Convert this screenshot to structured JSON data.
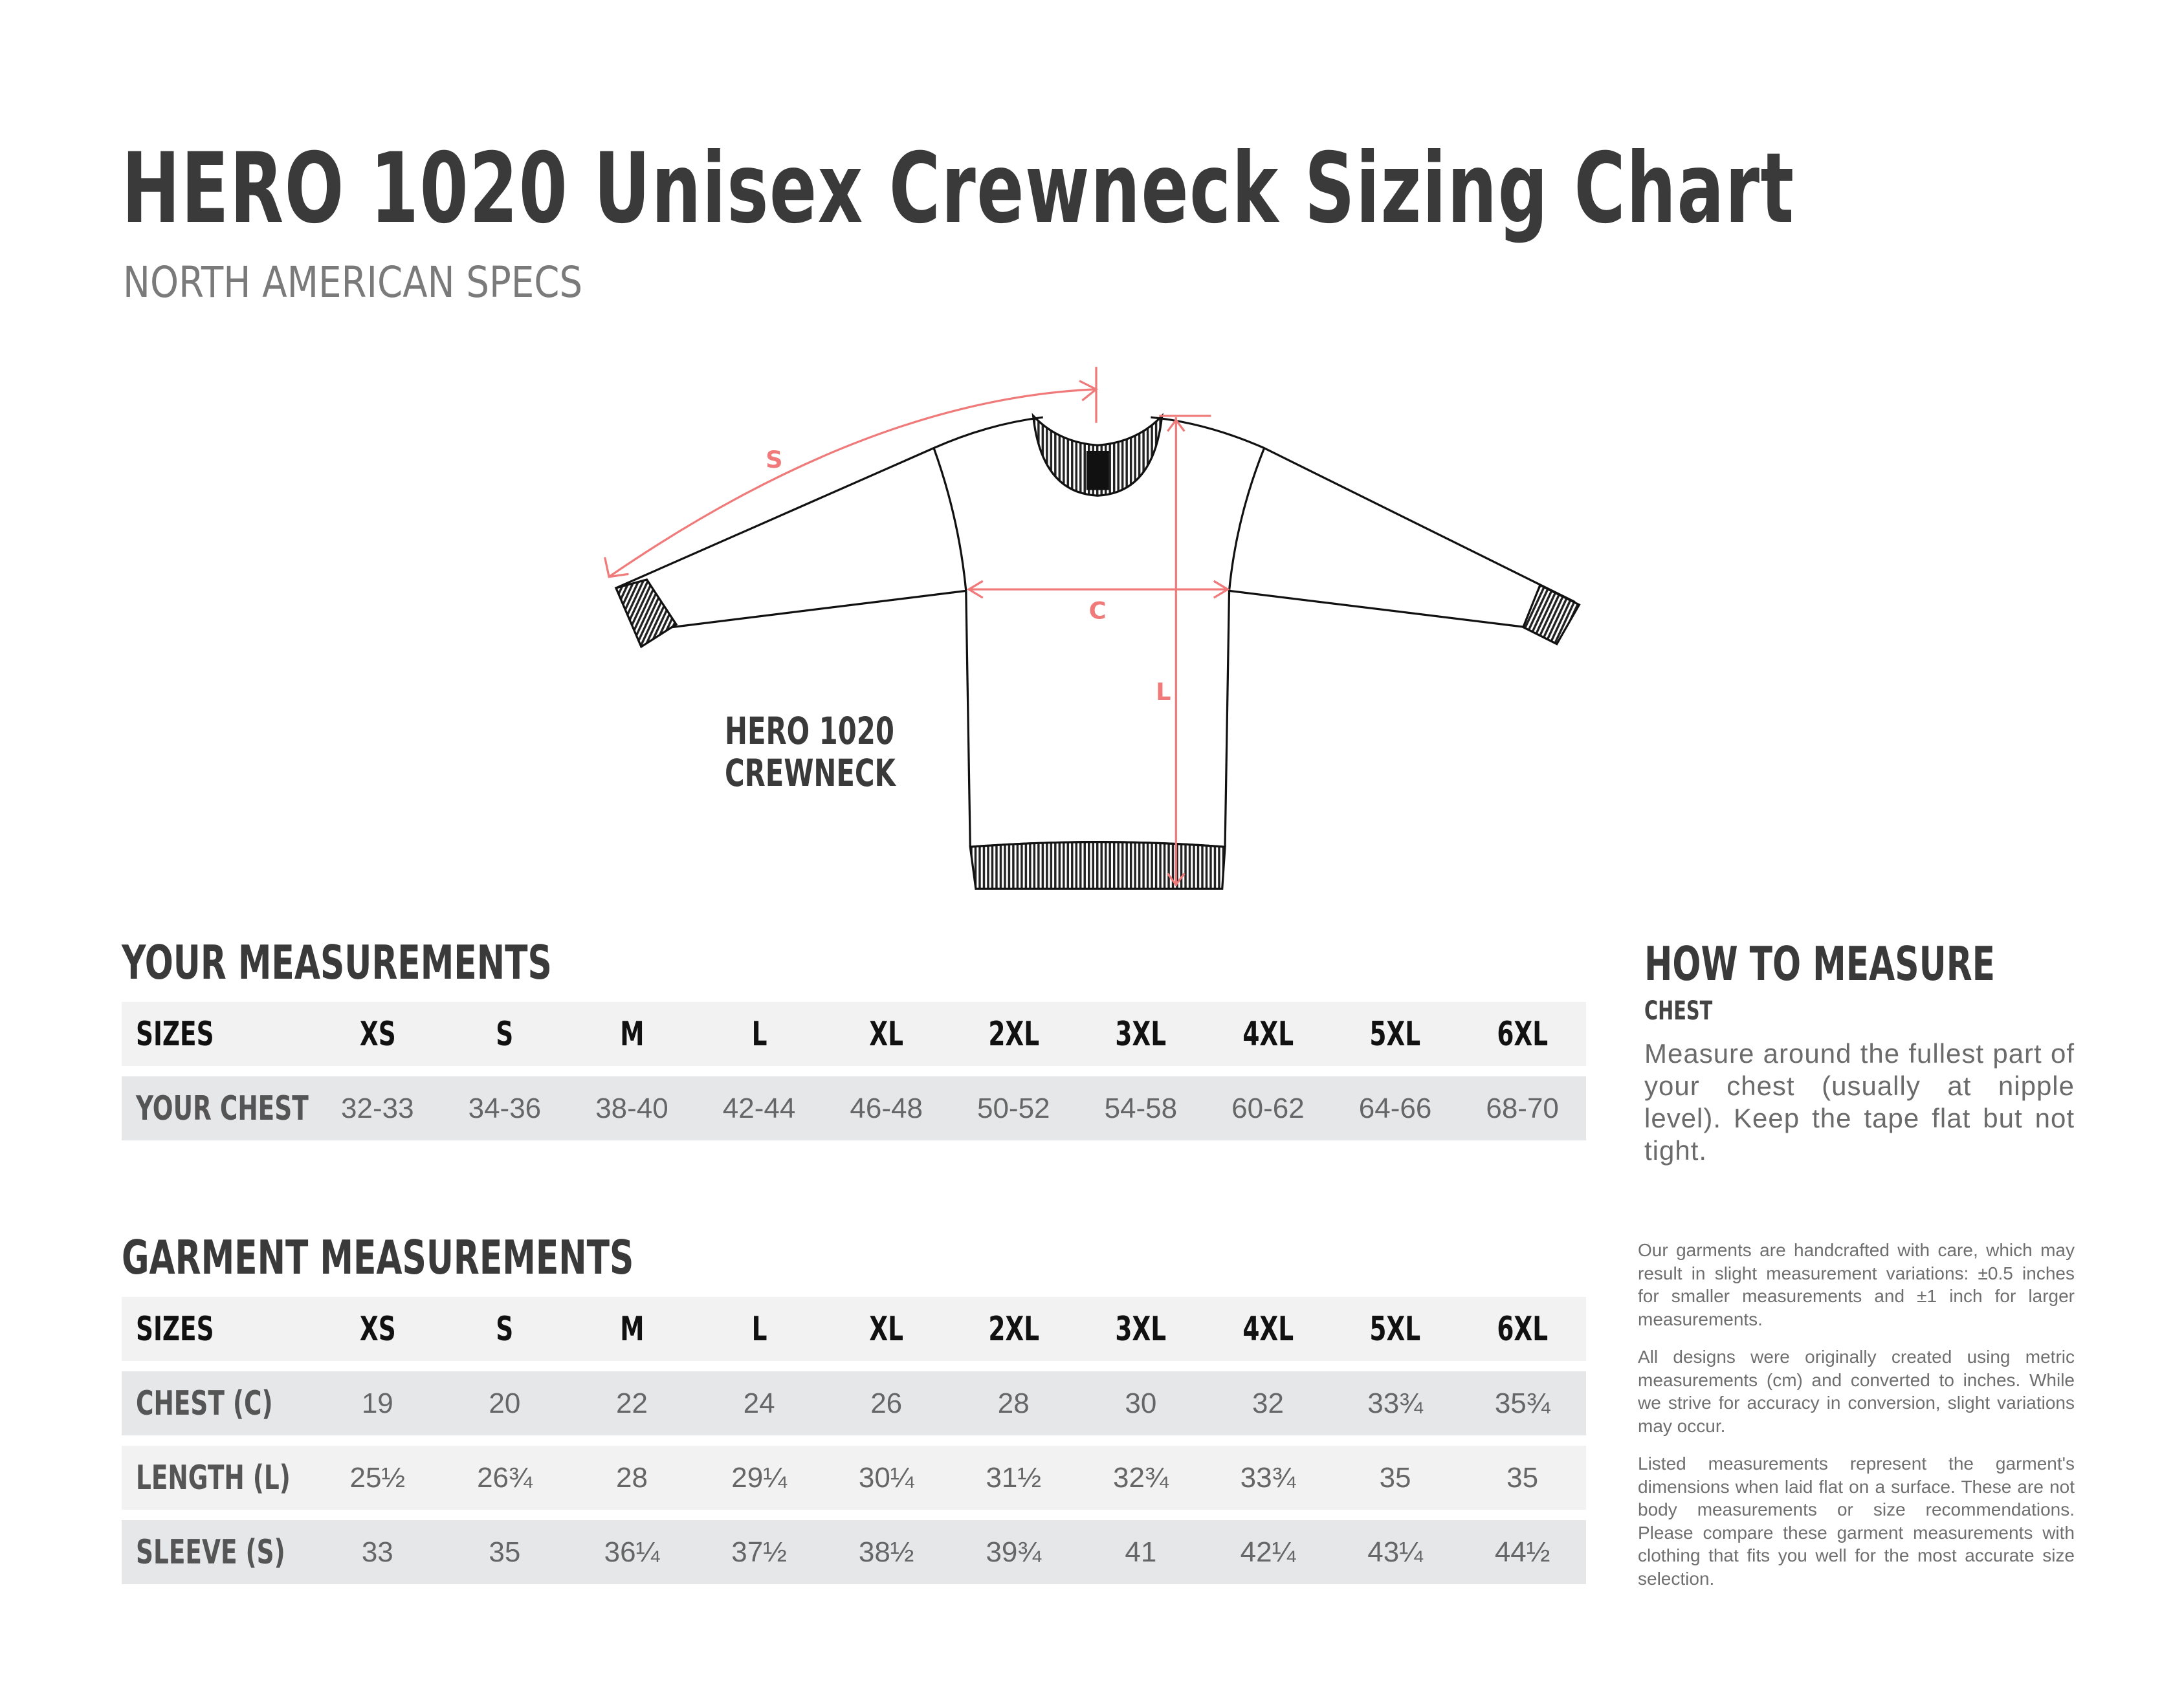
{
  "header": {
    "title": "HERO 1020 Unisex Crewneck Sizing Chart",
    "subtitle": "NORTH AMERICAN SPECS"
  },
  "illustration": {
    "model_line1": "HERO 1020",
    "model_line2": "CREWNECK",
    "label_sleeve": "S",
    "label_chest": "C",
    "label_length": "L",
    "measure_color": "#f07a7a",
    "tag_text": "HERO 1020"
  },
  "your_measurements": {
    "title": "YOUR MEASUREMENTS",
    "header_label": "SIZES",
    "sizes": [
      "XS",
      "S",
      "M",
      "L",
      "XL",
      "2XL",
      "3XL",
      "4XL",
      "5XL",
      "6XL"
    ],
    "rows": [
      {
        "label": "YOUR CHEST",
        "values": [
          "32-33",
          "34-36",
          "38-40",
          "42-44",
          "46-48",
          "50-52",
          "54-58",
          "60-62",
          "64-66",
          "68-70"
        ]
      }
    ]
  },
  "garment_measurements": {
    "title": "GARMENT MEASUREMENTS",
    "header_label": "SIZES",
    "sizes": [
      "XS",
      "S",
      "M",
      "L",
      "XL",
      "2XL",
      "3XL",
      "4XL",
      "5XL",
      "6XL"
    ],
    "rows": [
      {
        "label": "CHEST (C)",
        "values": [
          "19",
          "20",
          "22",
          "24",
          "26",
          "28",
          "30",
          "32",
          "33¾",
          "35¾"
        ]
      },
      {
        "label": "LENGTH (L)",
        "values": [
          "25½",
          "26¾",
          "28",
          "29¼",
          "30¼",
          "31½",
          "32¾",
          "33¾",
          "35",
          "35"
        ]
      },
      {
        "label": "SLEEVE (S)",
        "values": [
          "33",
          "35",
          "36¼",
          "37½",
          "38½",
          "39¾",
          "41",
          "42¼",
          "43¼",
          "44½"
        ]
      }
    ]
  },
  "how_to_measure": {
    "title": "HOW TO MEASURE",
    "subtitle": "CHEST",
    "text": "Measure around the fullest part of your chest (usually at nipple level). Keep the tape flat but not tight."
  },
  "notes": [
    "Our garments are handcrafted with care, which may result in slight measurement variations: ±0.5 inches for smaller measurements and ±1 inch for larger measurements.",
    "All designs were originally created using metric measurements (cm) and converted to inches. While we strive for accuracy in conversion, slight variations may occur.",
    "Listed measurements represent the garment's dimensions when laid flat on a surface. These are not body measurements or size recommendations. Please compare these garment measurements with clothing that fits you well for the most accurate size selection."
  ]
}
